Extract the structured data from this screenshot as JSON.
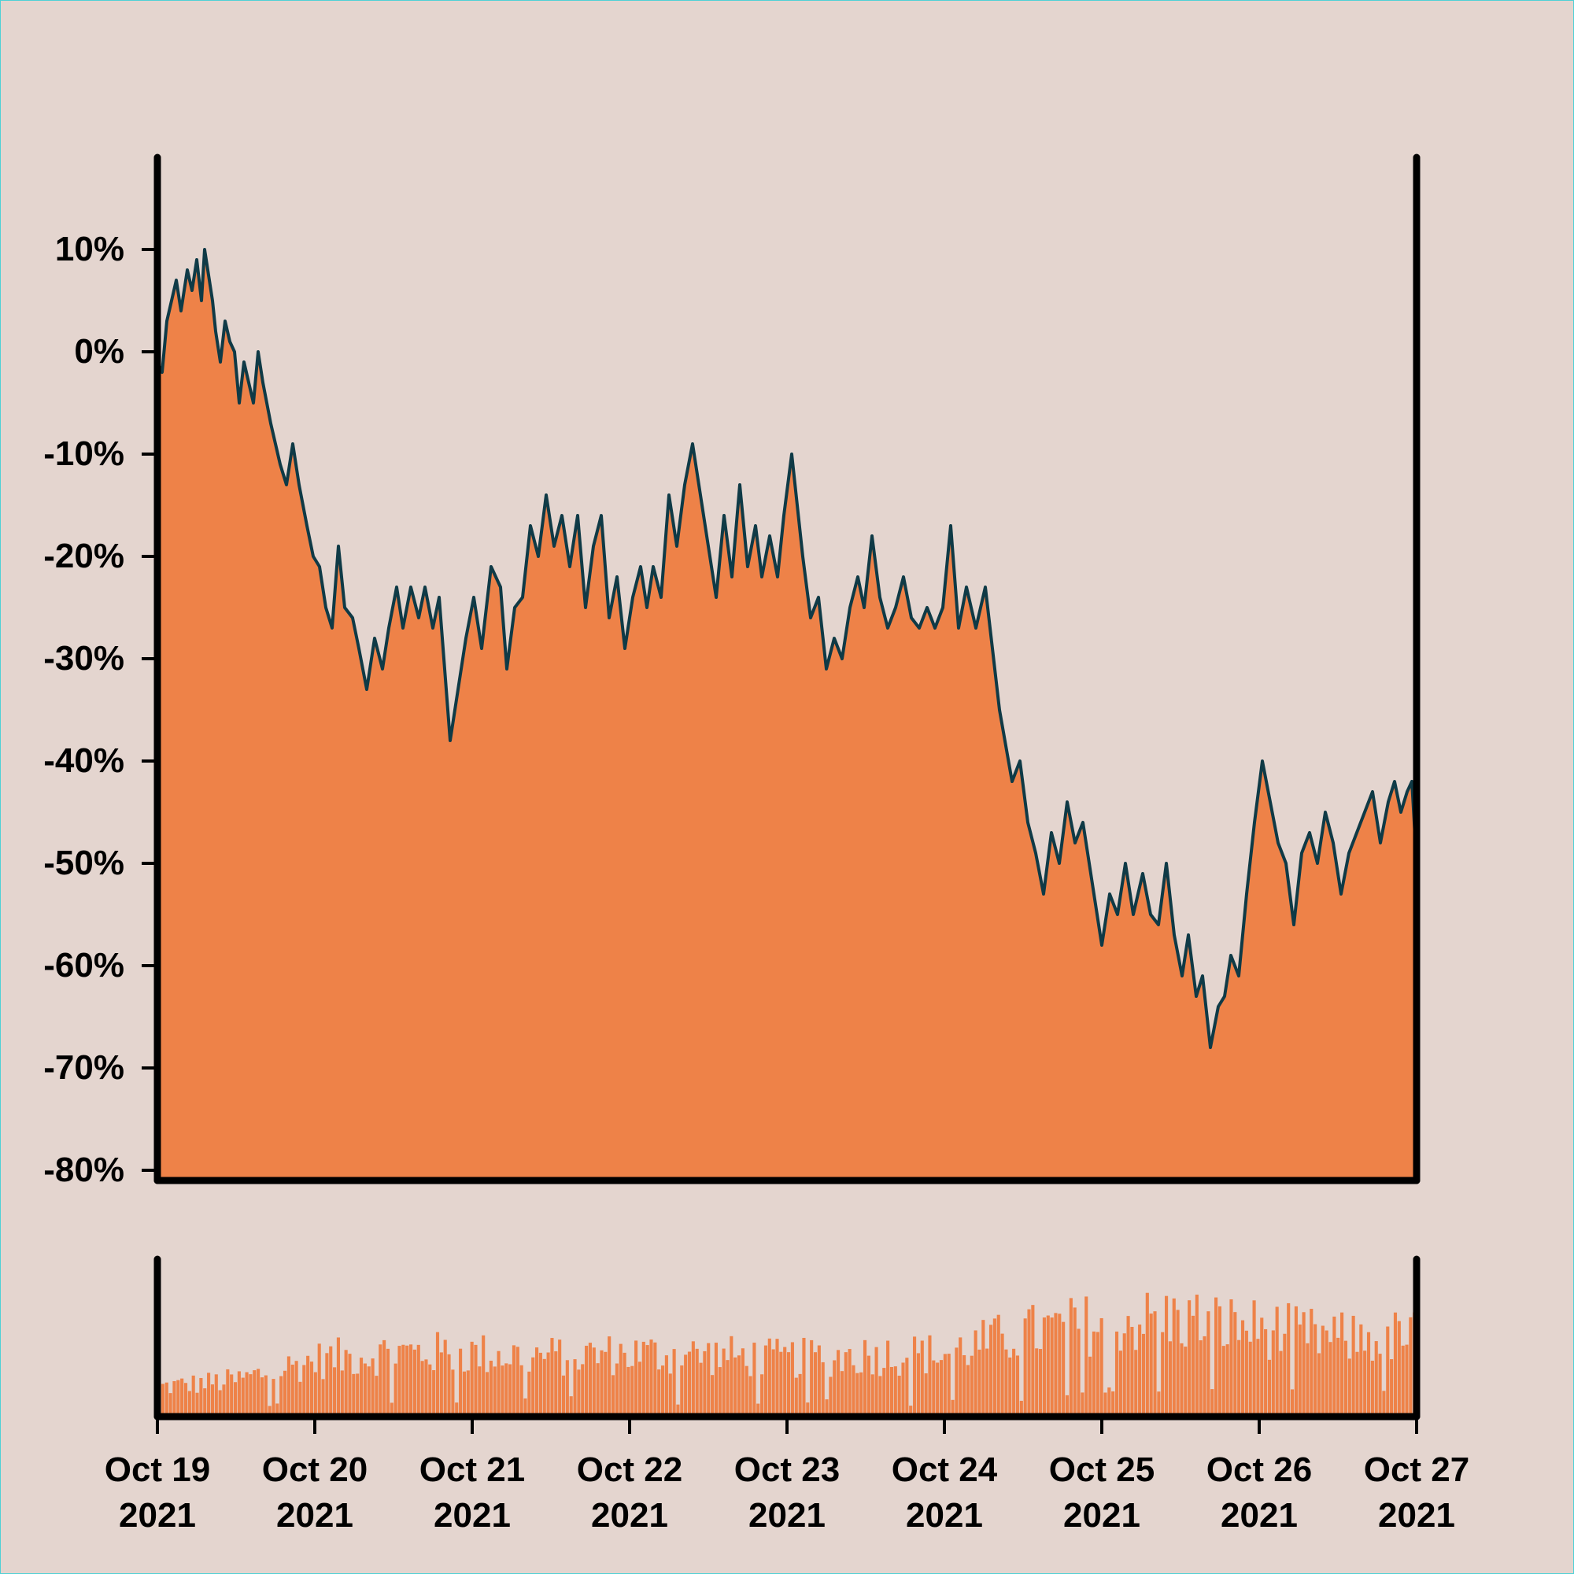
{
  "colors": {
    "background": "#e4d5cf",
    "area_fill": "#ee8248",
    "line": "#0f3a46",
    "axis": "#000000",
    "volume_bars": "#ee8248"
  },
  "chart_data": [
    {
      "type": "area",
      "title": "",
      "xlabel": "",
      "ylabel": "",
      "xlim": [
        "2021-10-19",
        "2021-10-27"
      ],
      "ylim": [
        -81,
        19
      ],
      "y_ticks": [
        {
          "value": 10,
          "label": "10%"
        },
        {
          "value": 0,
          "label": "0%"
        },
        {
          "value": -10,
          "label": "-10%"
        },
        {
          "value": -20,
          "label": "-20%"
        },
        {
          "value": -30,
          "label": "-30%"
        },
        {
          "value": -40,
          "label": "-40%"
        },
        {
          "value": -50,
          "label": "-50%"
        },
        {
          "value": -60,
          "label": "-60%"
        },
        {
          "value": -70,
          "label": "-70%"
        },
        {
          "value": -80,
          "label": "-80%"
        }
      ],
      "grid": false,
      "legend": "none",
      "series": [
        {
          "x_unit": "days since Oct 19 2021",
          "points": [
            [
              0.0,
              -1
            ],
            [
              0.03,
              -2
            ],
            [
              0.06,
              3
            ],
            [
              0.09,
              5
            ],
            [
              0.12,
              7
            ],
            [
              0.15,
              4
            ],
            [
              0.19,
              8
            ],
            [
              0.22,
              6
            ],
            [
              0.25,
              9
            ],
            [
              0.28,
              5
            ],
            [
              0.3,
              10
            ],
            [
              0.35,
              5
            ],
            [
              0.37,
              2
            ],
            [
              0.4,
              -1
            ],
            [
              0.43,
              3
            ],
            [
              0.46,
              1
            ],
            [
              0.49,
              0
            ],
            [
              0.52,
              -5
            ],
            [
              0.55,
              -1
            ],
            [
              0.58,
              -3
            ],
            [
              0.61,
              -5
            ],
            [
              0.64,
              0
            ],
            [
              0.67,
              -3
            ],
            [
              0.72,
              -7
            ],
            [
              0.78,
              -11
            ],
            [
              0.82,
              -13
            ],
            [
              0.86,
              -9
            ],
            [
              0.9,
              -13
            ],
            [
              0.95,
              -17
            ],
            [
              0.99,
              -20
            ],
            [
              1.03,
              -21
            ],
            [
              1.07,
              -25
            ],
            [
              1.11,
              -27
            ],
            [
              1.15,
              -19
            ],
            [
              1.19,
              -25
            ],
            [
              1.24,
              -26
            ],
            [
              1.28,
              -29
            ],
            [
              1.33,
              -33
            ],
            [
              1.38,
              -28
            ],
            [
              1.43,
              -31
            ],
            [
              1.47,
              -27
            ],
            [
              1.52,
              -23
            ],
            [
              1.56,
              -27
            ],
            [
              1.61,
              -23
            ],
            [
              1.66,
              -26
            ],
            [
              1.7,
              -23
            ],
            [
              1.75,
              -27
            ],
            [
              1.79,
              -24
            ],
            [
              1.86,
              -38
            ],
            [
              1.91,
              -33
            ],
            [
              1.96,
              -28
            ],
            [
              2.01,
              -24
            ],
            [
              2.06,
              -29
            ],
            [
              2.12,
              -21
            ],
            [
              2.18,
              -23
            ],
            [
              2.22,
              -31
            ],
            [
              2.27,
              -25
            ],
            [
              2.32,
              -24
            ],
            [
              2.37,
              -17
            ],
            [
              2.42,
              -20
            ],
            [
              2.47,
              -14
            ],
            [
              2.52,
              -19
            ],
            [
              2.57,
              -16
            ],
            [
              2.62,
              -21
            ],
            [
              2.67,
              -16
            ],
            [
              2.72,
              -25
            ],
            [
              2.77,
              -19
            ],
            [
              2.82,
              -16
            ],
            [
              2.87,
              -26
            ],
            [
              2.92,
              -22
            ],
            [
              2.97,
              -29
            ],
            [
              3.02,
              -24
            ],
            [
              3.07,
              -21
            ],
            [
              3.11,
              -25
            ],
            [
              3.15,
              -21
            ],
            [
              3.2,
              -24
            ],
            [
              3.25,
              -14
            ],
            [
              3.3,
              -19
            ],
            [
              3.35,
              -13
            ],
            [
              3.4,
              -9
            ],
            [
              3.45,
              -14
            ],
            [
              3.5,
              -19
            ],
            [
              3.55,
              -24
            ],
            [
              3.6,
              -16
            ],
            [
              3.65,
              -22
            ],
            [
              3.7,
              -13
            ],
            [
              3.75,
              -21
            ],
            [
              3.8,
              -17
            ],
            [
              3.84,
              -22
            ],
            [
              3.89,
              -18
            ],
            [
              3.94,
              -22
            ],
            [
              3.98,
              -16
            ],
            [
              4.03,
              -10
            ],
            [
              4.1,
              -20
            ],
            [
              4.15,
              -26
            ],
            [
              4.2,
              -24
            ],
            [
              4.25,
              -31
            ],
            [
              4.3,
              -28
            ],
            [
              4.35,
              -30
            ],
            [
              4.4,
              -25
            ],
            [
              4.45,
              -22
            ],
            [
              4.49,
              -25
            ],
            [
              4.54,
              -18
            ],
            [
              4.59,
              -24
            ],
            [
              4.64,
              -27
            ],
            [
              4.69,
              -25
            ],
            [
              4.74,
              -22
            ],
            [
              4.79,
              -26
            ],
            [
              4.84,
              -27
            ],
            [
              4.89,
              -25
            ],
            [
              4.94,
              -27
            ],
            [
              4.99,
              -25
            ],
            [
              5.04,
              -17
            ],
            [
              5.09,
              -27
            ],
            [
              5.14,
              -23
            ],
            [
              5.2,
              -27
            ],
            [
              5.26,
              -23
            ],
            [
              5.35,
              -35
            ],
            [
              5.43,
              -42
            ],
            [
              5.48,
              -40
            ],
            [
              5.53,
              -46
            ],
            [
              5.58,
              -49
            ],
            [
              5.63,
              -53
            ],
            [
              5.68,
              -47
            ],
            [
              5.73,
              -50
            ],
            [
              5.78,
              -44
            ],
            [
              5.83,
              -48
            ],
            [
              5.88,
              -46
            ],
            [
              5.93,
              -51
            ],
            [
              6.0,
              -58
            ],
            [
              6.05,
              -53
            ],
            [
              6.1,
              -55
            ],
            [
              6.15,
              -50
            ],
            [
              6.2,
              -55
            ],
            [
              6.26,
              -51
            ],
            [
              6.31,
              -55
            ],
            [
              6.36,
              -56
            ],
            [
              6.41,
              -50
            ],
            [
              6.46,
              -57
            ],
            [
              6.51,
              -61
            ],
            [
              6.55,
              -57
            ],
            [
              6.6,
              -63
            ],
            [
              6.64,
              -61
            ],
            [
              6.69,
              -68
            ],
            [
              6.74,
              -64
            ],
            [
              6.78,
              -63
            ],
            [
              6.82,
              -59
            ],
            [
              6.87,
              -61
            ],
            [
              6.92,
              -53
            ],
            [
              6.97,
              -46
            ],
            [
              7.02,
              -40
            ],
            [
              7.07,
              -44
            ],
            [
              7.12,
              -48
            ],
            [
              7.17,
              -50
            ],
            [
              7.22,
              -56
            ],
            [
              7.27,
              -49
            ],
            [
              7.32,
              -47
            ],
            [
              7.37,
              -50
            ],
            [
              7.42,
              -45
            ],
            [
              7.47,
              -48
            ],
            [
              7.52,
              -53
            ],
            [
              7.57,
              -49
            ],
            [
              7.62,
              -47
            ],
            [
              7.67,
              -45
            ],
            [
              7.72,
              -43
            ],
            [
              7.77,
              -48
            ],
            [
              7.82,
              -44
            ],
            [
              7.86,
              -42
            ],
            [
              7.9,
              -45
            ],
            [
              7.94,
              -43
            ],
            [
              7.97,
              -42
            ],
            [
              8.0,
              -50
            ]
          ]
        }
      ]
    },
    {
      "type": "bar",
      "title": "",
      "xlabel": "",
      "ylabel": "",
      "x_ticks": [
        {
          "day": 0,
          "label": [
            "Oct 19",
            "2021"
          ]
        },
        {
          "day": 1,
          "label": [
            "Oct 20",
            "2021"
          ]
        },
        {
          "day": 2,
          "label": [
            "Oct 21",
            "2021"
          ]
        },
        {
          "day": 3,
          "label": [
            "Oct 22",
            "2021"
          ]
        },
        {
          "day": 4,
          "label": [
            "Oct 23",
            "2021"
          ]
        },
        {
          "day": 5,
          "label": [
            "Oct 24",
            "2021"
          ]
        },
        {
          "day": 6,
          "label": [
            "Oct 25",
            "2021"
          ]
        },
        {
          "day": 7,
          "label": [
            "Oct 26",
            "2021"
          ]
        },
        {
          "day": 8,
          "label": [
            "Oct 27",
            "2021"
          ]
        }
      ],
      "ylim": [
        0,
        1
      ],
      "volume_envelope": [
        [
          0.0,
          0.22
        ],
        [
          0.5,
          0.27
        ],
        [
          1.0,
          0.42
        ],
        [
          1.5,
          0.48
        ],
        [
          2.0,
          0.47
        ],
        [
          2.5,
          0.45
        ],
        [
          3.0,
          0.47
        ],
        [
          3.5,
          0.46
        ],
        [
          4.0,
          0.43
        ],
        [
          4.5,
          0.46
        ],
        [
          5.0,
          0.47
        ],
        [
          5.5,
          0.62
        ],
        [
          6.0,
          0.7
        ],
        [
          6.5,
          0.73
        ],
        [
          7.0,
          0.66
        ],
        [
          7.5,
          0.58
        ],
        [
          8.0,
          0.6
        ]
      ]
    }
  ]
}
